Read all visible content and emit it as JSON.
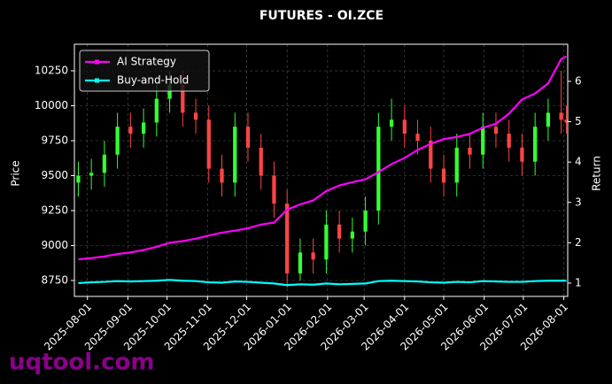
{
  "chart_data": {
    "type": "candlestick",
    "title": "FUTURES - OI.ZCE",
    "ylabel": "Price",
    "y2label": "Return",
    "watermark": "uqtool.com",
    "x": [
      "2025-07-25",
      "2025-08-04",
      "2025-08-14",
      "2025-08-24",
      "2025-09-03",
      "2025-09-13",
      "2025-09-23",
      "2025-10-03",
      "2025-10-13",
      "2025-10-23",
      "2025-11-02",
      "2025-11-12",
      "2025-11-22",
      "2025-12-02",
      "2025-12-12",
      "2025-12-22",
      "2026-01-01",
      "2026-01-11",
      "2026-01-21",
      "2026-01-31",
      "2026-02-10",
      "2026-02-20",
      "2026-03-02",
      "2026-03-12",
      "2026-03-22",
      "2026-04-01",
      "2026-04-11",
      "2026-04-21",
      "2026-05-01",
      "2026-05-11",
      "2026-05-21",
      "2026-05-31",
      "2026-06-10",
      "2026-06-20",
      "2026-06-30",
      "2026-07-10",
      "2026-07-20",
      "2026-07-30",
      "2026-08-03"
    ],
    "open": [
      9450,
      9500,
      9520,
      9650,
      9850,
      9800,
      9880,
      10050,
      10150,
      9950,
      9900,
      9550,
      9450,
      9850,
      9700,
      9500,
      9300,
      8800,
      8950,
      8900,
      9150,
      9050,
      9100,
      9250,
      9850,
      9900,
      9800,
      9750,
      9550,
      9450,
      9700,
      9650,
      9850,
      9800,
      9700,
      9600,
      9850,
      9950,
      9900
    ],
    "high": [
      9600,
      9620,
      9750,
      9950,
      9950,
      9980,
      10150,
      10250,
      10250,
      10050,
      10000,
      9650,
      9950,
      9950,
      9800,
      9600,
      9400,
      9050,
      9050,
      9250,
      9250,
      9200,
      9350,
      9950,
      10050,
      10000,
      9900,
      9850,
      9650,
      9800,
      9800,
      9950,
      9950,
      9900,
      9800,
      9950,
      10050,
      10250,
      10000
    ],
    "low": [
      9350,
      9400,
      9420,
      9550,
      9700,
      9700,
      9780,
      9950,
      9850,
      9800,
      9450,
      9350,
      9350,
      9600,
      9400,
      9200,
      8700,
      8750,
      8800,
      8800,
      8950,
      8950,
      9000,
      9150,
      9750,
      9700,
      9650,
      9450,
      9350,
      9350,
      9550,
      9550,
      9700,
      9600,
      9500,
      9500,
      9750,
      9800,
      9800
    ],
    "close": [
      9500,
      9520,
      9650,
      9850,
      9800,
      9880,
      10050,
      10150,
      9950,
      9900,
      9550,
      9450,
      9850,
      9700,
      9500,
      9300,
      8800,
      8950,
      8900,
      9150,
      9050,
      9100,
      9250,
      9850,
      9900,
      9800,
      9750,
      9550,
      9450,
      9700,
      9650,
      9850,
      9800,
      9700,
      9600,
      9850,
      9950,
      9900,
      9880
    ],
    "up_color": "#33ff33",
    "down_color": "#ff4444",
    "series": [
      {
        "name": "AI Strategy",
        "color": "#ff00ff",
        "axis": "y2",
        "values": [
          1.59,
          1.62,
          1.66,
          1.72,
          1.76,
          1.82,
          1.9,
          2.0,
          2.04,
          2.1,
          2.18,
          2.25,
          2.3,
          2.36,
          2.45,
          2.5,
          2.82,
          2.95,
          3.05,
          3.28,
          3.42,
          3.5,
          3.57,
          3.75,
          3.95,
          4.1,
          4.3,
          4.45,
          4.57,
          4.62,
          4.7,
          4.85,
          4.95,
          5.2,
          5.55,
          5.7,
          5.95,
          6.55,
          6.62
        ]
      },
      {
        "name": "Buy-and-Hold",
        "color": "#00ffff",
        "axis": "y2",
        "values": [
          1.0,
          1.02,
          1.03,
          1.05,
          1.04,
          1.05,
          1.06,
          1.08,
          1.06,
          1.05,
          1.02,
          1.01,
          1.04,
          1.03,
          1.01,
          0.99,
          0.95,
          0.97,
          0.96,
          0.99,
          0.97,
          0.98,
          0.99,
          1.05,
          1.06,
          1.05,
          1.04,
          1.02,
          1.01,
          1.03,
          1.02,
          1.05,
          1.04,
          1.03,
          1.03,
          1.05,
          1.06,
          1.06,
          1.06
        ]
      }
    ],
    "xlim": [
      "2025-07-22",
      "2026-08-04"
    ],
    "xticks": [
      "2025-08-01",
      "2025-09-01",
      "2025-10-01",
      "2025-11-01",
      "2025-12-01",
      "2026-01-01",
      "2026-02-01",
      "2026-03-01",
      "2026-04-01",
      "2026-05-01",
      "2026-06-01",
      "2026-07-01",
      "2026-08-01"
    ],
    "ylim": [
      8636,
      10440
    ],
    "yticks": [
      8750,
      9000,
      9250,
      9500,
      9750,
      10000,
      10250
    ],
    "y2lim": [
      0.67,
      6.92
    ],
    "y2ticks": [
      1,
      2,
      3,
      4,
      5,
      6
    ],
    "grid": true,
    "legend": "upper left"
  }
}
